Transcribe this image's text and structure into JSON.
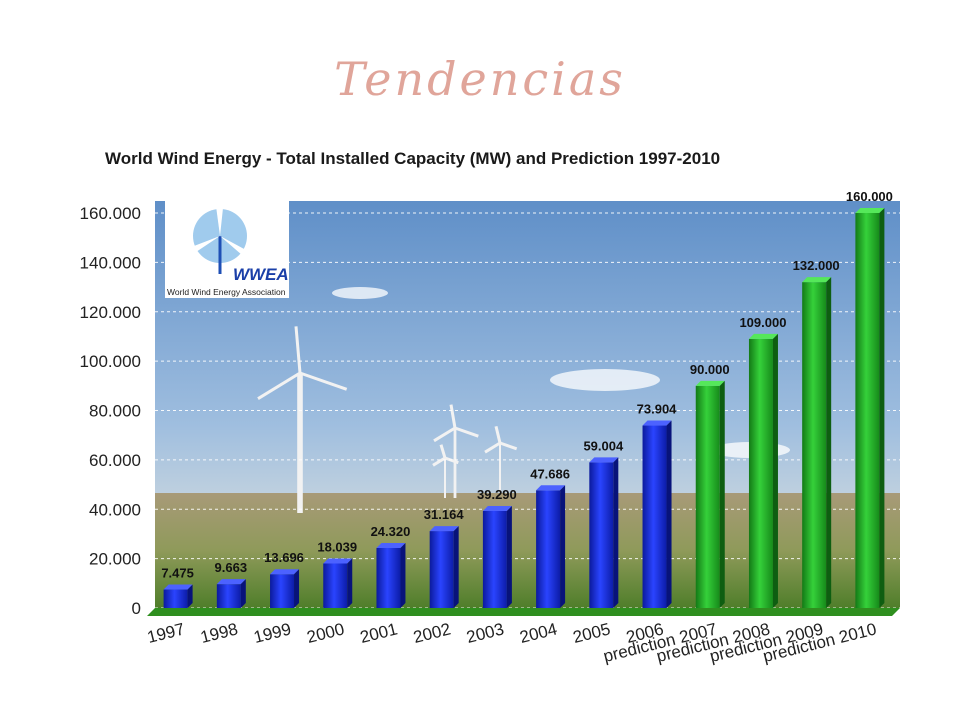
{
  "slide": {
    "title": "Tendencias"
  },
  "logo": {
    "name": "WWEA",
    "subtitle": "World Wind Energy Association",
    "icon": "wind-turbine-icon"
  },
  "colors": {
    "actual": "#1a2fd6",
    "prediction": "#1fae23",
    "title": "#e0a59a"
  },
  "chart_data": {
    "type": "bar",
    "title": "World Wind Energy - Total Installed Capacity (MW) and Prediction 1997-2010",
    "xlabel": "",
    "ylabel": "",
    "ylim": [
      0,
      160000
    ],
    "yticks": [
      0,
      20000,
      40000,
      60000,
      80000,
      100000,
      120000,
      140000,
      160000
    ],
    "ytick_labels": [
      "0",
      "20.000",
      "40.000",
      "60.000",
      "80.000",
      "100.000",
      "120.000",
      "140.000",
      "160.000"
    ],
    "grid": true,
    "categories": [
      "1997",
      "1998",
      "1999",
      "2000",
      "2001",
      "2002",
      "2003",
      "2004",
      "2005",
      "2006",
      "prediction 2007",
      "prediction 2008",
      "prediction 2009",
      "prediction 2010"
    ],
    "values": [
      7475,
      9663,
      13696,
      18039,
      24320,
      31164,
      39290,
      47686,
      59004,
      73904,
      90000,
      109000,
      132000,
      160000
    ],
    "value_labels": [
      "7.475",
      "9.663",
      "13.696",
      "18.039",
      "24.320",
      "31.164",
      "39.290",
      "47.686",
      "59.004",
      "73.904",
      "90.000",
      "109.000",
      "132.000",
      "160.000"
    ],
    "is_prediction": [
      false,
      false,
      false,
      false,
      false,
      false,
      false,
      false,
      false,
      false,
      true,
      true,
      true,
      true
    ],
    "background": "wind-turbine-field-photo"
  }
}
